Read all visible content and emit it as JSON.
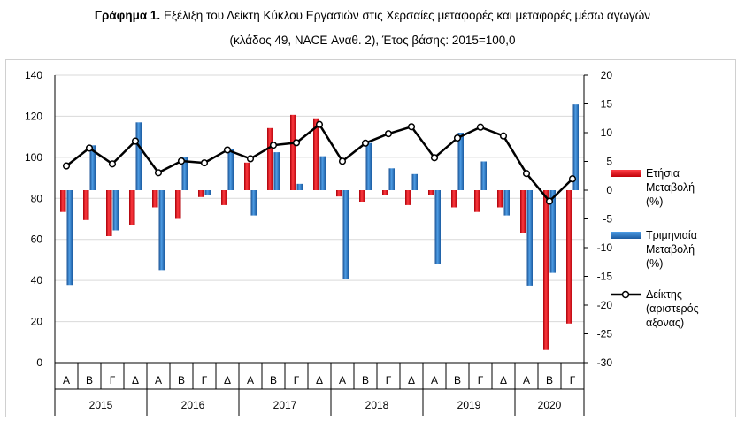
{
  "title": {
    "bold": "Γράφημα 1.",
    "line1": "Εξέλιξη του Δείκτη Κύκλου Εργασιών στις Χερσαίες μεταφορές και μεταφορές μέσω αγωγών",
    "line2": "(κλάδος 49, NACE Αναθ. 2), Έτος βάσης: 2015=100,0"
  },
  "colors": {
    "annual": "#e8000b",
    "quarterly": "#1f6fc0",
    "index_line": "#000000",
    "grid": "#d9d9d9"
  },
  "legend": {
    "annual": "Ετήσια\nΜεταβολή\n(%)",
    "quarterly": "Τριμηνιαία\nΜεταβολή\n(%)",
    "index": "Δείκτης\n(αριστερός\nάξονας)"
  },
  "chart_data": {
    "type": "bar",
    "categories": [
      "Α",
      "Β",
      "Γ",
      "Δ",
      "Α",
      "Β",
      "Γ",
      "Δ",
      "Α",
      "Β",
      "Γ",
      "Δ",
      "Α",
      "Β",
      "Γ",
      "Δ",
      "Α",
      "Β",
      "Γ",
      "Δ",
      "Α",
      "Β",
      "Γ"
    ],
    "years": [
      {
        "label": "2015",
        "quarters": 4
      },
      {
        "label": "2016",
        "quarters": 4
      },
      {
        "label": "2017",
        "quarters": 4
      },
      {
        "label": "2018",
        "quarters": 4
      },
      {
        "label": "2019",
        "quarters": 4
      },
      {
        "label": "2020",
        "quarters": 3
      }
    ],
    "left_axis": {
      "min": 0,
      "max": 140,
      "ticks": [
        0,
        20,
        40,
        60,
        80,
        100,
        120,
        140
      ]
    },
    "right_axis": {
      "min": -30,
      "max": 20,
      "ticks": [
        -30,
        -25,
        -20,
        -15,
        -10,
        -5,
        0,
        5,
        10,
        15,
        20
      ]
    },
    "series": [
      {
        "name": "Ετήσια Μεταβολή (%)",
        "axis": "right",
        "kind": "bar",
        "values": [
          -3.8,
          -5.2,
          -8.0,
          -6.0,
          -3.0,
          -5.0,
          -1.2,
          -2.6,
          4.8,
          10.8,
          13.1,
          12.5,
          -1.1,
          -2.0,
          -0.8,
          -2.6,
          -0.8,
          -3.0,
          -3.8,
          -3.0,
          -7.4,
          -27.8,
          -23.2
        ]
      },
      {
        "name": "Τριμηνιαία Μεταβολή (%)",
        "axis": "right",
        "kind": "bar",
        "values": [
          -16.5,
          7.8,
          -7.0,
          11.8,
          -13.9,
          5.7,
          -0.8,
          7.1,
          -4.4,
          6.6,
          1.1,
          5.9,
          -15.4,
          8.2,
          3.8,
          2.8,
          -12.9,
          10.0,
          5.0,
          -4.4,
          -16.6,
          -14.4,
          14.9
        ]
      },
      {
        "name": "Δείκτης (αριστερός άξονας)",
        "axis": "left",
        "kind": "line",
        "values": [
          95.8,
          104.5,
          96.8,
          107.9,
          92.5,
          98.2,
          97.3,
          103.6,
          99.3,
          105.9,
          107.1,
          116.0,
          98.1,
          106.9,
          111.5,
          114.9,
          99.8,
          109.4,
          114.7,
          110.4,
          92.1,
          78.6,
          89.5
        ]
      }
    ],
    "xlabel": "",
    "ylabel": "",
    "grid": "horizontal",
    "legend_position": "right"
  }
}
